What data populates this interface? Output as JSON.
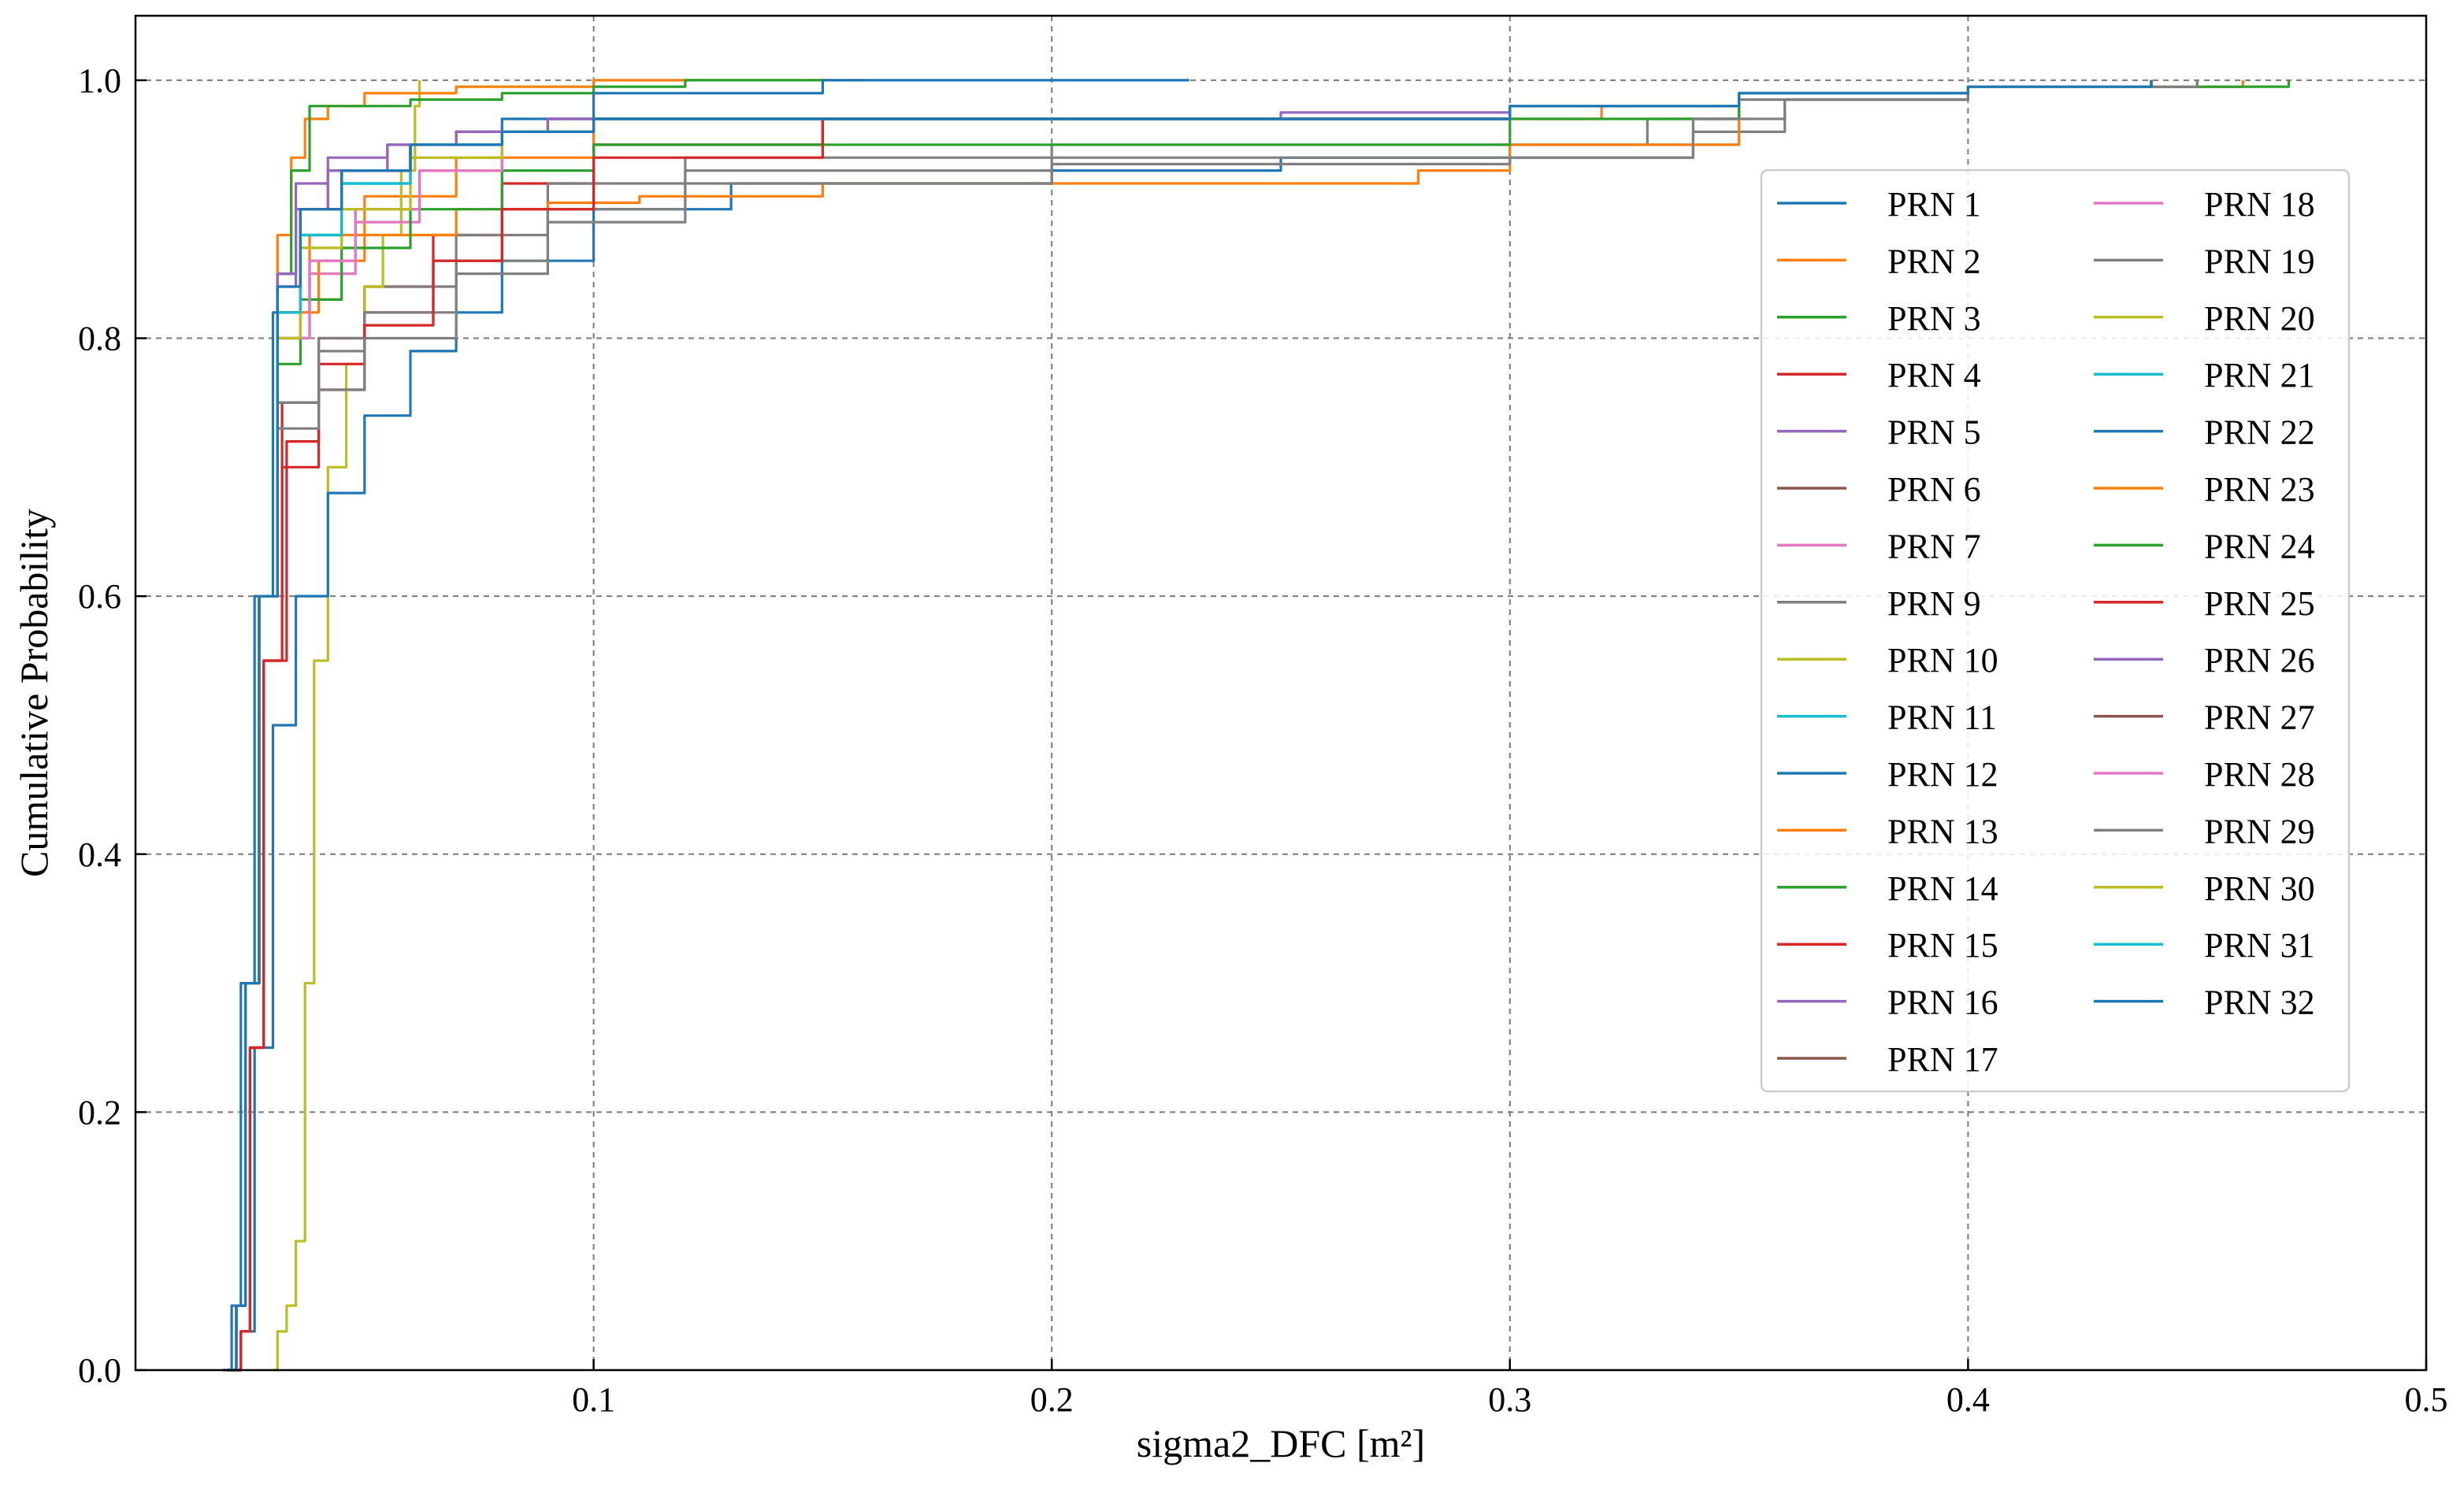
{
  "chart_data": {
    "type": "line",
    "title": "",
    "xlabel": "sigma2_DFC [m²]",
    "ylabel": "Cumulative Probability",
    "xlim": [
      0,
      0.5
    ],
    "ylim": [
      0,
      1.05
    ],
    "xticks": [
      0.1,
      0.2,
      0.3,
      0.4,
      0.5
    ],
    "xtick_labels": [
      "0.1",
      "0.2",
      "0.3",
      "0.4",
      "0.5"
    ],
    "yticks": [
      0.0,
      0.2,
      0.4,
      0.6,
      0.8,
      1.0
    ],
    "ytick_labels": [
      "0.0",
      "0.2",
      "0.4",
      "0.6",
      "0.8",
      "1.0"
    ],
    "grid": true,
    "legend_position": "right",
    "legend_columns": 2,
    "series": [
      {
        "name": "PRN 1",
        "color": "#1f77b4",
        "x": [
          0.019,
          0.021,
          0.023,
          0.026,
          0.03,
          0.036,
          0.045,
          0.06,
          0.08,
          0.1,
          0.15,
          0.25,
          0.3,
          0.35,
          0.4,
          0.46
        ],
        "y": [
          0,
          0.05,
          0.3,
          0.6,
          0.82,
          0.9,
          0.93,
          0.95,
          0.96,
          0.97,
          0.97,
          0.97,
          0.98,
          0.99,
          0.995,
          1.0
        ]
      },
      {
        "name": "PRN 2",
        "color": "#ff7f0e",
        "x": [
          0.02,
          0.022,
          0.024,
          0.027,
          0.031,
          0.038,
          0.05,
          0.07,
          0.1,
          0.15,
          0.25,
          0.3,
          0.32,
          0.35,
          0.4,
          0.46
        ],
        "y": [
          0,
          0.05,
          0.3,
          0.6,
          0.82,
          0.88,
          0.91,
          0.94,
          0.97,
          0.97,
          0.97,
          0.97,
          0.98,
          0.99,
          0.995,
          1.0
        ]
      },
      {
        "name": "PRN 3",
        "color": "#2ca02c",
        "x": [
          0.02,
          0.022,
          0.024,
          0.027,
          0.031,
          0.036,
          0.045,
          0.06,
          0.08,
          0.1,
          0.15,
          0.25,
          0.3,
          0.35,
          0.4,
          0.47
        ],
        "y": [
          0,
          0.05,
          0.3,
          0.6,
          0.82,
          0.9,
          0.93,
          0.95,
          0.96,
          0.97,
          0.97,
          0.97,
          0.98,
          0.99,
          0.995,
          1.0
        ]
      },
      {
        "name": "PRN 4",
        "color": "#d62728",
        "x": [
          0.021,
          0.023,
          0.025,
          0.028,
          0.032,
          0.04,
          0.05,
          0.065,
          0.08,
          0.1,
          0.15,
          0.25,
          0.3,
          0.35,
          0.4,
          0.45
        ],
        "y": [
          0,
          0.03,
          0.25,
          0.55,
          0.75,
          0.8,
          0.84,
          0.88,
          0.92,
          0.95,
          0.97,
          0.97,
          0.98,
          0.99,
          0.995,
          1.0
        ]
      },
      {
        "name": "PRN 5",
        "color": "#9467bd",
        "x": [
          0.02,
          0.022,
          0.024,
          0.027,
          0.031,
          0.035,
          0.042,
          0.055,
          0.07,
          0.09,
          0.15,
          0.25,
          0.3,
          0.35,
          0.4,
          0.45
        ],
        "y": [
          0,
          0.05,
          0.3,
          0.6,
          0.85,
          0.92,
          0.94,
          0.95,
          0.96,
          0.97,
          0.97,
          0.975,
          0.98,
          0.99,
          0.995,
          1.0
        ]
      },
      {
        "name": "PRN 6",
        "color": "#8c564b",
        "x": [
          0.02,
          0.022,
          0.024,
          0.027,
          0.031,
          0.036,
          0.045,
          0.06,
          0.08,
          0.1,
          0.15,
          0.25,
          0.3,
          0.35,
          0.4,
          0.44
        ],
        "y": [
          0,
          0.05,
          0.3,
          0.6,
          0.82,
          0.9,
          0.93,
          0.95,
          0.96,
          0.97,
          0.97,
          0.97,
          0.98,
          0.99,
          0.995,
          1.0
        ]
      },
      {
        "name": "PRN 7",
        "color": "#e377c2",
        "x": [
          0.02,
          0.022,
          0.024,
          0.027,
          0.031,
          0.038,
          0.048,
          0.062,
          0.08,
          0.1,
          0.15,
          0.25,
          0.3,
          0.35,
          0.4,
          0.44
        ],
        "y": [
          0,
          0.05,
          0.3,
          0.6,
          0.8,
          0.86,
          0.9,
          0.93,
          0.96,
          0.97,
          0.97,
          0.97,
          0.98,
          0.99,
          0.995,
          1.0
        ]
      },
      {
        "name": "PRN 9",
        "color": "#7f7f7f",
        "x": [
          0.02,
          0.022,
          0.024,
          0.027,
          0.031,
          0.04,
          0.05,
          0.07,
          0.09,
          0.12,
          0.2,
          0.28,
          0.33,
          0.35,
          0.4,
          0.45
        ],
        "y": [
          0,
          0.05,
          0.3,
          0.6,
          0.75,
          0.8,
          0.84,
          0.88,
          0.92,
          0.94,
          0.95,
          0.95,
          0.97,
          0.985,
          0.995,
          1.0
        ]
      },
      {
        "name": "PRN 10",
        "color": "#bcbd22",
        "x": [
          0.03,
          0.031,
          0.033,
          0.035,
          0.037,
          0.039,
          0.042,
          0.046,
          0.05,
          0.054,
          0.058,
          0.061,
          0.062
        ],
        "y": [
          0,
          0.03,
          0.05,
          0.1,
          0.3,
          0.55,
          0.7,
          0.78,
          0.84,
          0.88,
          0.93,
          0.98,
          1.0
        ]
      },
      {
        "name": "PRN 11",
        "color": "#17becf",
        "x": [
          0.02,
          0.022,
          0.024,
          0.027,
          0.031,
          0.036,
          0.045,
          0.06,
          0.08,
          0.1,
          0.15,
          0.25,
          0.3,
          0.35,
          0.4,
          0.44
        ],
        "y": [
          0,
          0.05,
          0.3,
          0.6,
          0.82,
          0.88,
          0.92,
          0.95,
          0.96,
          0.97,
          0.97,
          0.97,
          0.98,
          0.99,
          0.995,
          1.0
        ]
      },
      {
        "name": "PRN 12",
        "color": "#1f77b4",
        "x": [
          0.021,
          0.023,
          0.026,
          0.03,
          0.035,
          0.042,
          0.05,
          0.06,
          0.07,
          0.08,
          0.1,
          0.13,
          0.2,
          0.25,
          0.3,
          0.35,
          0.4,
          0.45
        ],
        "y": [
          0,
          0.03,
          0.25,
          0.5,
          0.6,
          0.68,
          0.74,
          0.79,
          0.82,
          0.86,
          0.9,
          0.92,
          0.93,
          0.94,
          0.95,
          0.99,
          0.995,
          1.0
        ]
      },
      {
        "name": "PRN 13",
        "color": "#ff7f0e",
        "x": [
          0.02,
          0.022,
          0.024,
          0.027,
          0.031,
          0.034,
          0.037,
          0.042,
          0.05,
          0.07,
          0.1,
          0.13,
          0.16
        ],
        "y": [
          0,
          0.05,
          0.3,
          0.6,
          0.88,
          0.94,
          0.97,
          0.98,
          0.99,
          0.995,
          1.0,
          1.0,
          1.0
        ]
      },
      {
        "name": "PRN 14",
        "color": "#2ca02c",
        "x": [
          0.02,
          0.022,
          0.024,
          0.027,
          0.031,
          0.034,
          0.038,
          0.045,
          0.06,
          0.08,
          0.1,
          0.12,
          0.15
        ],
        "y": [
          0,
          0.05,
          0.3,
          0.6,
          0.85,
          0.93,
          0.98,
          0.98,
          0.985,
          0.99,
          0.995,
          1.0,
          1.0
        ]
      },
      {
        "name": "PRN 15",
        "color": "#d62728",
        "x": [
          0.021,
          0.023,
          0.025,
          0.028,
          0.033,
          0.04,
          0.05,
          0.065,
          0.08,
          0.1,
          0.15,
          0.25,
          0.3,
          0.35,
          0.4,
          0.45
        ],
        "y": [
          0,
          0.03,
          0.25,
          0.55,
          0.72,
          0.78,
          0.82,
          0.86,
          0.9,
          0.95,
          0.97,
          0.97,
          0.98,
          0.99,
          0.995,
          1.0
        ]
      },
      {
        "name": "PRN 16",
        "color": "#9467bd",
        "x": [
          0.02,
          0.022,
          0.024,
          0.027,
          0.031,
          0.035,
          0.042,
          0.055,
          0.07,
          0.09,
          0.15,
          0.25,
          0.3,
          0.35,
          0.4,
          0.44
        ],
        "y": [
          0,
          0.05,
          0.3,
          0.6,
          0.85,
          0.9,
          0.93,
          0.95,
          0.96,
          0.97,
          0.97,
          0.97,
          0.98,
          0.99,
          0.995,
          1.0
        ]
      },
      {
        "name": "PRN 17",
        "color": "#8c564b",
        "x": [
          0.02,
          0.022,
          0.024,
          0.027,
          0.031,
          0.036,
          0.045,
          0.06,
          0.08,
          0.1,
          0.15,
          0.25,
          0.3,
          0.35,
          0.4,
          0.44
        ],
        "y": [
          0,
          0.05,
          0.3,
          0.6,
          0.82,
          0.9,
          0.93,
          0.95,
          0.96,
          0.97,
          0.97,
          0.97,
          0.98,
          0.99,
          0.995,
          1.0
        ]
      },
      {
        "name": "PRN 18",
        "color": "#e377c2",
        "x": [
          0.02,
          0.022,
          0.024,
          0.027,
          0.031,
          0.038,
          0.048,
          0.062,
          0.08,
          0.1,
          0.15,
          0.25,
          0.3,
          0.35,
          0.4,
          0.44
        ],
        "y": [
          0,
          0.05,
          0.3,
          0.6,
          0.8,
          0.85,
          0.89,
          0.93,
          0.96,
          0.97,
          0.97,
          0.97,
          0.98,
          0.99,
          0.995,
          1.0
        ]
      },
      {
        "name": "PRN 19",
        "color": "#7f7f7f",
        "x": [
          0.02,
          0.022,
          0.024,
          0.027,
          0.031,
          0.04,
          0.05,
          0.07,
          0.09,
          0.12,
          0.2,
          0.3,
          0.34,
          0.36,
          0.4,
          0.45
        ],
        "y": [
          0,
          0.05,
          0.3,
          0.6,
          0.75,
          0.79,
          0.82,
          0.86,
          0.9,
          0.93,
          0.94,
          0.94,
          0.96,
          0.985,
          0.995,
          1.0
        ]
      },
      {
        "name": "PRN 20",
        "color": "#bcbd22",
        "x": [
          0.02,
          0.022,
          0.024,
          0.027,
          0.031,
          0.036,
          0.045,
          0.06,
          0.08,
          0.1,
          0.15,
          0.25,
          0.3,
          0.35,
          0.4,
          0.44
        ],
        "y": [
          0,
          0.05,
          0.3,
          0.6,
          0.8,
          0.87,
          0.9,
          0.94,
          0.96,
          0.97,
          0.97,
          0.97,
          0.98,
          0.99,
          0.995,
          1.0
        ]
      },
      {
        "name": "PRN 21",
        "color": "#17becf",
        "x": [
          0.02,
          0.022,
          0.024,
          0.027,
          0.031,
          0.036,
          0.045,
          0.06,
          0.08,
          0.1,
          0.15,
          0.25,
          0.3,
          0.35,
          0.4,
          0.44
        ],
        "y": [
          0,
          0.05,
          0.3,
          0.6,
          0.82,
          0.88,
          0.92,
          0.95,
          0.96,
          0.97,
          0.97,
          0.97,
          0.98,
          0.99,
          0.995,
          1.0
        ]
      },
      {
        "name": "PRN 22",
        "color": "#1f77b4",
        "x": [
          0.02,
          0.022,
          0.024,
          0.027,
          0.031,
          0.036,
          0.045,
          0.06,
          0.08,
          0.1,
          0.15,
          0.2,
          0.23
        ],
        "y": [
          0,
          0.05,
          0.3,
          0.6,
          0.82,
          0.9,
          0.93,
          0.95,
          0.97,
          0.99,
          1.0,
          1.0,
          1.0
        ]
      },
      {
        "name": "PRN 23",
        "color": "#ff7f0e",
        "x": [
          0.02,
          0.022,
          0.024,
          0.027,
          0.031,
          0.04,
          0.05,
          0.07,
          0.09,
          0.11,
          0.15,
          0.23,
          0.28,
          0.3,
          0.32,
          0.35,
          0.4,
          0.45
        ],
        "y": [
          0,
          0.05,
          0.3,
          0.6,
          0.82,
          0.86,
          0.88,
          0.9,
          0.905,
          0.91,
          0.92,
          0.92,
          0.93,
          0.95,
          0.95,
          0.99,
          0.995,
          1.0
        ]
      },
      {
        "name": "PRN 24",
        "color": "#2ca02c",
        "x": [
          0.02,
          0.022,
          0.024,
          0.027,
          0.031,
          0.036,
          0.045,
          0.06,
          0.08,
          0.1,
          0.15,
          0.25,
          0.3,
          0.35,
          0.4,
          0.45
        ],
        "y": [
          0,
          0.05,
          0.3,
          0.6,
          0.78,
          0.83,
          0.87,
          0.9,
          0.93,
          0.95,
          0.95,
          0.95,
          0.97,
          0.99,
          0.995,
          1.0
        ]
      },
      {
        "name": "PRN 25",
        "color": "#d62728",
        "x": [
          0.021,
          0.023,
          0.025,
          0.028,
          0.032,
          0.04,
          0.05,
          0.065,
          0.08,
          0.1,
          0.15,
          0.25,
          0.3,
          0.35,
          0.4,
          0.44
        ],
        "y": [
          0,
          0.03,
          0.25,
          0.55,
          0.7,
          0.76,
          0.81,
          0.86,
          0.9,
          0.94,
          0.97,
          0.97,
          0.98,
          0.99,
          0.995,
          1.0
        ]
      },
      {
        "name": "PRN 26",
        "color": "#9467bd",
        "x": [
          0.02,
          0.022,
          0.024,
          0.027,
          0.031,
          0.035,
          0.042,
          0.055,
          0.07,
          0.09,
          0.15,
          0.25,
          0.3,
          0.35,
          0.4,
          0.44
        ],
        "y": [
          0,
          0.05,
          0.3,
          0.6,
          0.84,
          0.9,
          0.93,
          0.95,
          0.96,
          0.97,
          0.97,
          0.97,
          0.98,
          0.99,
          0.995,
          1.0
        ]
      },
      {
        "name": "PRN 27",
        "color": "#8c564b",
        "x": [
          0.02,
          0.022,
          0.024,
          0.027,
          0.031,
          0.036,
          0.045,
          0.06,
          0.08,
          0.1,
          0.15,
          0.25,
          0.3,
          0.35,
          0.4,
          0.44
        ],
        "y": [
          0,
          0.05,
          0.3,
          0.6,
          0.82,
          0.9,
          0.93,
          0.95,
          0.96,
          0.97,
          0.97,
          0.97,
          0.98,
          0.99,
          0.995,
          1.0
        ]
      },
      {
        "name": "PRN 28",
        "color": "#e377c2",
        "x": [
          0.02,
          0.022,
          0.024,
          0.027,
          0.031,
          0.038,
          0.048,
          0.062,
          0.08,
          0.1,
          0.15,
          0.25,
          0.3,
          0.35,
          0.4,
          0.44
        ],
        "y": [
          0,
          0.05,
          0.3,
          0.6,
          0.8,
          0.86,
          0.9,
          0.93,
          0.96,
          0.97,
          0.97,
          0.97,
          0.98,
          0.99,
          0.995,
          1.0
        ]
      },
      {
        "name": "PRN 29",
        "color": "#7f7f7f",
        "x": [
          0.02,
          0.022,
          0.024,
          0.027,
          0.031,
          0.04,
          0.05,
          0.07,
          0.09,
          0.12,
          0.2,
          0.3,
          0.34,
          0.36,
          0.4,
          0.45
        ],
        "y": [
          0,
          0.05,
          0.3,
          0.6,
          0.73,
          0.76,
          0.8,
          0.85,
          0.89,
          0.92,
          0.935,
          0.94,
          0.97,
          0.985,
          0.995,
          1.0
        ]
      },
      {
        "name": "PRN 30",
        "color": "#bcbd22",
        "x": [
          0.02,
          0.022,
          0.024,
          0.027,
          0.031,
          0.036,
          0.045,
          0.06,
          0.08,
          0.1,
          0.15,
          0.25,
          0.3,
          0.35,
          0.4,
          0.44
        ],
        "y": [
          0,
          0.05,
          0.3,
          0.6,
          0.8,
          0.87,
          0.9,
          0.94,
          0.96,
          0.97,
          0.97,
          0.97,
          0.98,
          0.99,
          0.995,
          1.0
        ]
      },
      {
        "name": "PRN 31",
        "color": "#17becf",
        "x": [
          0.02,
          0.022,
          0.024,
          0.027,
          0.031,
          0.036,
          0.045,
          0.06,
          0.08,
          0.1,
          0.15,
          0.25,
          0.3,
          0.35,
          0.4,
          0.44
        ],
        "y": [
          0,
          0.05,
          0.3,
          0.6,
          0.82,
          0.88,
          0.92,
          0.95,
          0.96,
          0.97,
          0.97,
          0.97,
          0.98,
          0.99,
          0.995,
          1.0
        ]
      },
      {
        "name": "PRN 32",
        "color": "#1f77b4",
        "x": [
          0.02,
          0.022,
          0.024,
          0.027,
          0.031,
          0.036,
          0.045,
          0.06,
          0.08,
          0.1,
          0.15,
          0.25,
          0.3,
          0.35,
          0.4,
          0.44
        ],
        "y": [
          0,
          0.05,
          0.3,
          0.6,
          0.84,
          0.9,
          0.93,
          0.95,
          0.96,
          0.97,
          0.97,
          0.97,
          0.98,
          0.99,
          0.995,
          1.0
        ]
      }
    ]
  }
}
